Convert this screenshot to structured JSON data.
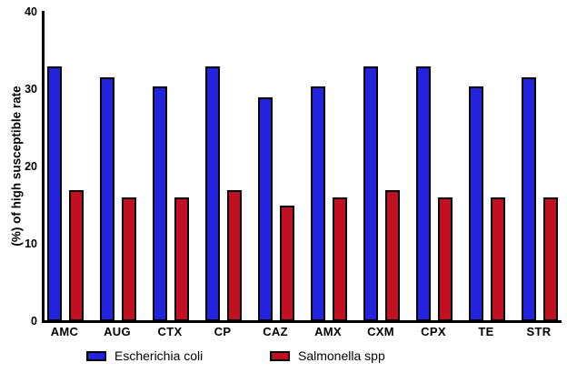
{
  "chart_data": {
    "type": "bar",
    "title": "",
    "xlabel": "",
    "ylabel": "(%) of high susceptible rate",
    "ylim": [
      0,
      40
    ],
    "yticks": [
      0,
      10,
      20,
      30,
      40
    ],
    "grid": false,
    "legend_position": "bottom",
    "background_color": "#ffffff",
    "axis_color": "#000000",
    "bar_outline_color": "#000000",
    "categories": [
      "AMC",
      "AUG",
      "CTX",
      "CP",
      "CAZ",
      "AMX",
      "CXM",
      "CPX",
      "TE",
      "STR"
    ],
    "series": [
      {
        "name": "Escherichia coli",
        "color": "#2323dd",
        "values": [
          33,
          31.5,
          30.3,
          33,
          29,
          30.3,
          33,
          33,
          30.3,
          31.5
        ]
      },
      {
        "name": "Salmonella spp",
        "color": "#c11022",
        "values": [
          17,
          16,
          16,
          17,
          15,
          16,
          17,
          16,
          16,
          16
        ]
      }
    ]
  }
}
